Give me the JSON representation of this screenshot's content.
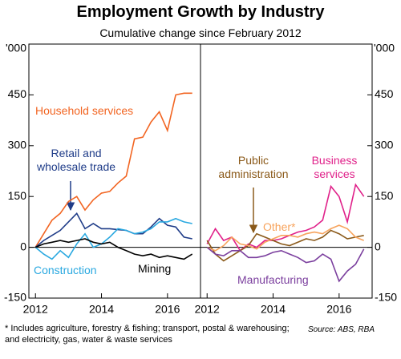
{
  "title": "Employment Growth by Industry",
  "subtitle": "Cumulative change since February 2012",
  "footnote": "* Includes agriculture, forestry & fishing; transport, postal & warehousing; and electricity, gas, water & waste services",
  "source": "Source: ABS, RBA",
  "chart_data": [
    {
      "type": "line",
      "y_unit": "'000",
      "y_axis_side": "left",
      "zero_line": true,
      "xlim": [
        2011.8,
        2017.0
      ],
      "xticks": [
        2012,
        2014,
        2016
      ],
      "ylim": [
        -150,
        600
      ],
      "yticks": [
        -150,
        0,
        150,
        300,
        450
      ],
      "x": [
        2012.0,
        2012.25,
        2012.5,
        2012.75,
        2013.0,
        2013.25,
        2013.5,
        2013.75,
        2014.0,
        2014.25,
        2014.5,
        2014.75,
        2015.0,
        2015.25,
        2015.5,
        2015.75,
        2016.0,
        2016.25,
        2016.5,
        2016.75
      ],
      "series": [
        {
          "name": "Household services",
          "color": "#f26522",
          "values": [
            0,
            40,
            80,
            100,
            135,
            150,
            110,
            140,
            160,
            165,
            190,
            210,
            320,
            325,
            370,
            400,
            345,
            450,
            455,
            455
          ]
        },
        {
          "name": "Retail and wholesale trade",
          "color": "#1f3c88",
          "values": [
            0,
            20,
            35,
            50,
            75,
            100,
            55,
            70,
            55,
            55,
            52,
            50,
            40,
            40,
            60,
            85,
            65,
            60,
            30,
            25
          ]
        },
        {
          "name": "Construction",
          "color": "#29a8e0",
          "values": [
            0,
            -20,
            -35,
            -10,
            -30,
            10,
            40,
            0,
            10,
            30,
            55,
            50,
            40,
            45,
            55,
            75,
            75,
            85,
            75,
            70
          ]
        },
        {
          "name": "Mining",
          "color": "#000000",
          "values": [
            0,
            10,
            15,
            20,
            15,
            20,
            25,
            15,
            10,
            15,
            0,
            -10,
            -20,
            -25,
            -20,
            -30,
            -25,
            -30,
            -35,
            -20
          ]
        }
      ]
    },
    {
      "type": "line",
      "y_unit": "'000",
      "y_axis_side": "right",
      "zero_line": true,
      "xlim": [
        2011.8,
        2017.0
      ],
      "xticks": [
        2012,
        2014,
        2016
      ],
      "ylim": [
        -150,
        600
      ],
      "yticks": [
        -150,
        0,
        150,
        300,
        450
      ],
      "x": [
        2012.0,
        2012.25,
        2012.5,
        2012.75,
        2013.0,
        2013.25,
        2013.5,
        2013.75,
        2014.0,
        2014.25,
        2014.5,
        2014.75,
        2015.0,
        2015.25,
        2015.5,
        2015.75,
        2016.0,
        2016.25,
        2016.5,
        2016.75
      ],
      "series": [
        {
          "name": "Business services",
          "color": "#e0218a",
          "values": [
            10,
            55,
            20,
            30,
            -10,
            10,
            0,
            20,
            20,
            25,
            35,
            45,
            50,
            60,
            80,
            180,
            150,
            75,
            185,
            150
          ]
        },
        {
          "name": "Public administration",
          "color": "#8b5a1a",
          "values": [
            20,
            -20,
            -40,
            -25,
            -10,
            5,
            40,
            30,
            20,
            10,
            5,
            15,
            25,
            20,
            30,
            50,
            40,
            25,
            30,
            35
          ]
        },
        {
          "name": "Other*",
          "color": "#f7a35c",
          "values": [
            0,
            -10,
            5,
            30,
            10,
            5,
            -5,
            15,
            25,
            35,
            35,
            30,
            40,
            45,
            40,
            55,
            65,
            55,
            30,
            20
          ]
        },
        {
          "name": "Manufacturing",
          "color": "#7b3f9e",
          "values": [
            0,
            -20,
            -25,
            -10,
            -10,
            -30,
            -30,
            -25,
            -15,
            -10,
            -20,
            -30,
            -45,
            -40,
            -20,
            -35,
            -100,
            -70,
            -50,
            -5
          ]
        }
      ]
    }
  ]
}
